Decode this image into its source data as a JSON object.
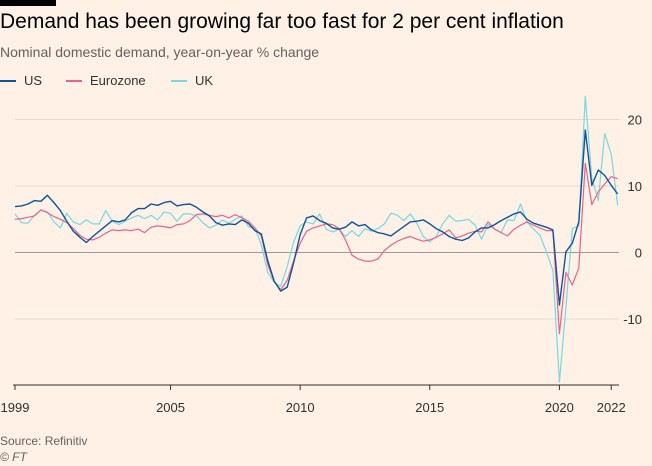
{
  "header": {
    "title": "Demand has been growing far too fast for 2 per cent inflation",
    "subtitle": "Nominal domestic demand, year-on-year % change"
  },
  "footer": {
    "source": "Source: Refinitiv",
    "credit": "© FT"
  },
  "colors": {
    "background": "#fff1e5",
    "gridline": "#e6d9ce",
    "zeroline": "#999999",
    "axis": "#33302e"
  },
  "chart_data": {
    "type": "line",
    "title": "Demand has been growing far too fast for 2 per cent inflation",
    "subtitle": "Nominal domestic demand, year-on-year % change",
    "xlabel": "",
    "ylabel": "",
    "xlim": [
      1999,
      2022.3
    ],
    "ylim": [
      -20,
      24
    ],
    "x_ticks": [
      1999,
      2005,
      2010,
      2015,
      2020,
      2022
    ],
    "x_tick_labels": [
      "1999",
      "2005",
      "2010",
      "2015",
      "2020",
      "2022"
    ],
    "y_ticks": [
      20,
      10,
      0,
      -10
    ],
    "y_tick_labels": [
      "20",
      "10",
      "0",
      "-10"
    ],
    "grid": true,
    "legend_position": "top-left",
    "series": [
      {
        "name": "US",
        "color": "#0f5499",
        "x": [
          1999.0,
          1999.25,
          1999.5,
          1999.75,
          2000.0,
          2000.25,
          2000.5,
          2000.75,
          2001.0,
          2001.25,
          2001.5,
          2001.75,
          2002.0,
          2002.25,
          2002.5,
          2002.75,
          2003.0,
          2003.25,
          2003.5,
          2003.75,
          2004.0,
          2004.25,
          2004.5,
          2004.75,
          2005.0,
          2005.25,
          2005.5,
          2005.75,
          2006.0,
          2006.25,
          2006.5,
          2006.75,
          2007.0,
          2007.25,
          2007.5,
          2007.75,
          2008.0,
          2008.25,
          2008.5,
          2008.75,
          2009.0,
          2009.25,
          2009.5,
          2009.75,
          2010.0,
          2010.25,
          2010.5,
          2010.75,
          2011.0,
          2011.25,
          2011.5,
          2011.75,
          2012.0,
          2012.25,
          2012.5,
          2012.75,
          2013.0,
          2013.25,
          2013.5,
          2013.75,
          2014.0,
          2014.25,
          2014.5,
          2014.75,
          2015.0,
          2015.25,
          2015.5,
          2015.75,
          2016.0,
          2016.25,
          2016.5,
          2016.75,
          2017.0,
          2017.25,
          2017.5,
          2017.75,
          2018.0,
          2018.25,
          2018.5,
          2018.75,
          2019.0,
          2019.25,
          2019.5,
          2019.75,
          2020.0,
          2020.25,
          2020.5,
          2020.75,
          2021.0,
          2021.25,
          2021.5,
          2021.75,
          2022.0,
          2022.25
        ],
        "values": [
          6.9,
          7.0,
          7.3,
          7.8,
          7.7,
          8.6,
          7.5,
          6.3,
          4.7,
          3.2,
          2.3,
          1.5,
          2.4,
          3.2,
          4.0,
          4.8,
          4.6,
          4.9,
          6.0,
          6.6,
          6.6,
          7.3,
          7.1,
          7.5,
          7.7,
          7.0,
          7.2,
          7.3,
          6.8,
          6.1,
          5.5,
          4.5,
          4.1,
          4.3,
          4.2,
          4.9,
          4.4,
          3.3,
          2.8,
          -1.2,
          -4.3,
          -5.8,
          -5.2,
          -1.5,
          2.7,
          5.2,
          5.5,
          4.8,
          4.4,
          3.7,
          3.5,
          3.8,
          4.6,
          4.0,
          4.2,
          3.4,
          3.0,
          2.8,
          2.5,
          3.2,
          3.9,
          4.6,
          4.7,
          4.9,
          4.3,
          3.6,
          3.1,
          2.4,
          2.0,
          1.8,
          2.2,
          3.1,
          3.7,
          3.7,
          4.2,
          4.8,
          5.3,
          5.8,
          6.1,
          5.0,
          4.4,
          4.1,
          3.8,
          3.4,
          -7.9,
          0.1,
          1.4,
          4.6,
          18.4,
          10.1,
          12.4,
          11.6,
          10.1,
          8.8
        ]
      },
      {
        "name": "Eurozone",
        "color": "#e3658e",
        "x": [
          1999.0,
          1999.25,
          1999.5,
          1999.75,
          2000.0,
          2000.25,
          2000.5,
          2000.75,
          2001.0,
          2001.25,
          2001.5,
          2001.75,
          2002.0,
          2002.25,
          2002.5,
          2002.75,
          2003.0,
          2003.25,
          2003.5,
          2003.75,
          2004.0,
          2004.25,
          2004.5,
          2004.75,
          2005.0,
          2005.25,
          2005.5,
          2005.75,
          2006.0,
          2006.25,
          2006.5,
          2006.75,
          2007.0,
          2007.25,
          2007.5,
          2007.75,
          2008.0,
          2008.25,
          2008.5,
          2008.75,
          2009.0,
          2009.25,
          2009.5,
          2009.75,
          2010.0,
          2010.25,
          2010.5,
          2010.75,
          2011.0,
          2011.25,
          2011.5,
          2011.75,
          2012.0,
          2012.25,
          2012.5,
          2012.75,
          2013.0,
          2013.25,
          2013.5,
          2013.75,
          2014.0,
          2014.25,
          2014.5,
          2014.75,
          2015.0,
          2015.25,
          2015.5,
          2015.75,
          2016.0,
          2016.25,
          2016.5,
          2016.75,
          2017.0,
          2017.25,
          2017.5,
          2017.75,
          2018.0,
          2018.25,
          2018.5,
          2018.75,
          2019.0,
          2019.25,
          2019.5,
          2019.75,
          2020.0,
          2020.25,
          2020.5,
          2020.75,
          2021.0,
          2021.25,
          2021.5,
          2021.75,
          2022.0,
          2022.25
        ],
        "values": [
          5.0,
          5.1,
          5.3,
          5.5,
          6.4,
          6.0,
          5.4,
          5.0,
          4.5,
          3.6,
          2.6,
          2.0,
          1.9,
          2.3,
          2.9,
          3.4,
          3.3,
          3.4,
          3.3,
          3.5,
          3.0,
          3.8,
          4.0,
          3.9,
          3.7,
          4.2,
          4.3,
          4.8,
          5.7,
          5.8,
          5.6,
          5.4,
          5.6,
          5.2,
          5.7,
          5.2,
          4.7,
          3.7,
          2.5,
          -1.8,
          -4.4,
          -5.6,
          -4.2,
          -1.2,
          1.4,
          3.2,
          3.7,
          4.0,
          4.3,
          4.2,
          3.6,
          1.9,
          -0.4,
          -1.0,
          -1.3,
          -1.3,
          -1.0,
          0.3,
          1.1,
          1.7,
          2.1,
          2.4,
          2.0,
          1.7,
          1.9,
          2.3,
          2.8,
          3.4,
          2.2,
          2.5,
          2.9,
          3.2,
          3.1,
          4.6,
          3.5,
          3.0,
          2.5,
          3.5,
          4.1,
          4.6,
          4.1,
          3.7,
          3.3,
          3.3,
          -12.2,
          -3.0,
          -4.9,
          -2.3,
          13.4,
          7.2,
          9.1,
          10.3,
          11.4,
          11.1
        ]
      },
      {
        "name": "UK",
        "color": "#7ad7e0",
        "x": [
          1999.0,
          1999.25,
          1999.5,
          1999.75,
          2000.0,
          2000.25,
          2000.5,
          2000.75,
          2001.0,
          2001.25,
          2001.5,
          2001.75,
          2002.0,
          2002.25,
          2002.5,
          2002.75,
          2003.0,
          2003.25,
          2003.5,
          2003.75,
          2004.0,
          2004.25,
          2004.5,
          2004.75,
          2005.0,
          2005.25,
          2005.5,
          2005.75,
          2006.0,
          2006.25,
          2006.5,
          2006.75,
          2007.0,
          2007.25,
          2007.5,
          2007.75,
          2008.0,
          2008.25,
          2008.5,
          2008.75,
          2009.0,
          2009.25,
          2009.5,
          2009.75,
          2010.0,
          2010.25,
          2010.5,
          2010.75,
          2011.0,
          2011.25,
          2011.5,
          2011.75,
          2012.0,
          2012.25,
          2012.5,
          2012.75,
          2013.0,
          2013.25,
          2013.5,
          2013.75,
          2014.0,
          2014.25,
          2014.5,
          2014.75,
          2015.0,
          2015.25,
          2015.5,
          2015.75,
          2016.0,
          2016.25,
          2016.5,
          2016.75,
          2017.0,
          2017.25,
          2017.5,
          2017.75,
          2018.0,
          2018.25,
          2018.5,
          2018.75,
          2019.0,
          2019.25,
          2019.5,
          2019.75,
          2020.0,
          2020.25,
          2020.5,
          2020.75,
          2021.0,
          2021.25,
          2021.5,
          2021.75,
          2022.0,
          2022.25
        ],
        "values": [
          5.8,
          4.5,
          4.4,
          5.6,
          6.4,
          6.1,
          4.6,
          3.7,
          5.9,
          4.6,
          4.2,
          4.9,
          4.3,
          4.3,
          6.3,
          4.7,
          4.2,
          4.7,
          5.2,
          5.6,
          5.1,
          5.6,
          4.9,
          6.1,
          5.9,
          4.7,
          5.8,
          5.8,
          5.5,
          4.5,
          3.7,
          4.1,
          4.9,
          4.4,
          5.0,
          5.5,
          3.9,
          3.7,
          1.2,
          -3.0,
          -4.5,
          -5.1,
          -2.1,
          1.6,
          4.0,
          4.6,
          4.3,
          5.8,
          3.5,
          3.1,
          3.5,
          2.4,
          3.3,
          2.4,
          3.6,
          3.2,
          3.6,
          4.3,
          5.9,
          5.6,
          4.8,
          5.8,
          4.4,
          2.4,
          1.6,
          2.4,
          4.3,
          5.6,
          4.7,
          4.8,
          5.0,
          4.1,
          2.0,
          4.2,
          3.5,
          3.0,
          4.9,
          4.8,
          7.3,
          4.6,
          3.5,
          2.6,
          0.1,
          -2.7,
          -19.5,
          -8.3,
          3.6,
          4.0,
          23.5,
          11.2,
          7.8,
          17.9,
          14.8,
          7.1
        ]
      }
    ]
  }
}
